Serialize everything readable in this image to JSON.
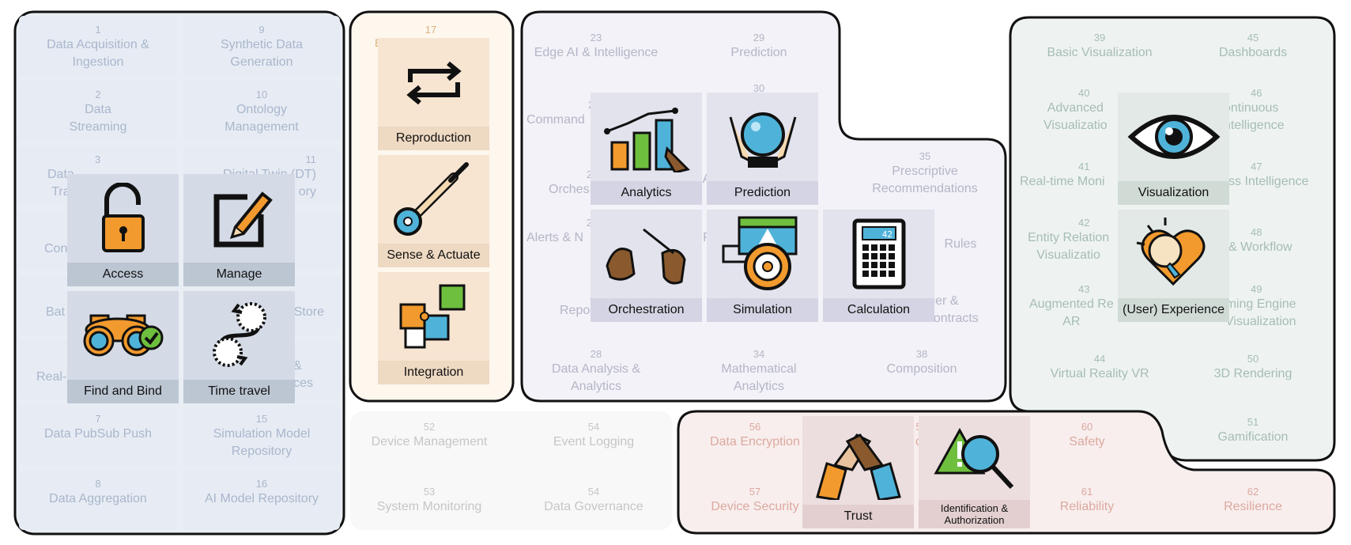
{
  "regions": {
    "data": {
      "cells": [
        {
          "num": "1",
          "label": "Data Acquisition &\nIngestion"
        },
        {
          "num": "9",
          "label": "Synthetic Data\nGeneration"
        },
        {
          "num": "2",
          "label": "Data\nStreaming"
        },
        {
          "num": "10",
          "label": "Ontology\nManagement"
        },
        {
          "num": "3",
          "label": "Data\nTra"
        },
        {
          "num": "11",
          "label": "Digital Twin (DT)\nory"
        },
        {
          "num": "",
          "label": "Con"
        },
        {
          "num": "",
          "label": "e"
        },
        {
          "num": "",
          "label": "Bat"
        },
        {
          "num": "",
          "label": "Store"
        },
        {
          "num": "",
          "label": "Real-"
        },
        {
          "num": "",
          "label": "&\nces"
        },
        {
          "num": "7",
          "label": "Data PubSub Push"
        },
        {
          "num": "15",
          "label": "Simulation Model\nRepository"
        },
        {
          "num": "8",
          "label": "Data Aggregation"
        },
        {
          "num": "16",
          "label": "AI Model Repository"
        }
      ],
      "tiles": [
        {
          "label": "Access",
          "icon": "open-padlock-icon"
        },
        {
          "label": "Manage",
          "icon": "pencil-edit-icon"
        },
        {
          "label": "Find and Bind",
          "icon": "binoculars-check-icon"
        },
        {
          "label": "Time travel",
          "icon": "time-loop-icon"
        }
      ]
    },
    "integration": {
      "cells": [
        {
          "num": "17",
          "label": "E"
        }
      ],
      "tiles": [
        {
          "label": "Reproduction",
          "icon": "repeat-arrows-icon"
        },
        {
          "label": "Sense & Actuate",
          "icon": "pointing-hand-sensor-icon"
        },
        {
          "label": "Integration",
          "icon": "puzzle-icon"
        }
      ]
    },
    "intelligence": {
      "cells": [
        {
          "num": "23",
          "label": "Edge AI & Intelligence"
        },
        {
          "num": "29",
          "label": "Prediction"
        },
        {
          "num": "2",
          "label": "Command"
        },
        {
          "num": "30",
          "label": ""
        },
        {
          "num": "2",
          "label": "Orches"
        },
        {
          "num": "",
          "label": "A"
        },
        {
          "num": "35",
          "label": "Prescriptive\nRecommendations"
        },
        {
          "num": "2",
          "label": "Alerts & N"
        },
        {
          "num": "",
          "label": "F"
        },
        {
          "num": "",
          "label": "Rules"
        },
        {
          "num": "2",
          "label": "Repo"
        },
        {
          "num": "",
          "label": "Ledger &\nSmart Contracts"
        },
        {
          "num": "28",
          "label": "Data Analysis &\nAnalytics"
        },
        {
          "num": "34",
          "label": "Mathematical\nAnalytics"
        },
        {
          "num": "38",
          "label": "Composition"
        }
      ],
      "tiles": [
        {
          "label": "Analytics",
          "icon": "bar-chart-icon"
        },
        {
          "label": "Prediction",
          "icon": "crystal-ball-icon"
        },
        {
          "label": "Orchestration",
          "icon": "conductor-hands-icon"
        },
        {
          "label": "Simulation",
          "icon": "steering-wheel-icon"
        },
        {
          "label": "Calculation",
          "icon": "calculator-icon"
        }
      ],
      "calc_display": "42"
    },
    "ux": {
      "cells": [
        {
          "num": "39",
          "label": "Basic Visualization"
        },
        {
          "num": "45",
          "label": "Dashboards"
        },
        {
          "num": "40",
          "label": "Advanced\nVisualizatio"
        },
        {
          "num": "46",
          "label": "ontinuous\nntelligence"
        },
        {
          "num": "41",
          "label": "Real-time Moni"
        },
        {
          "num": "47",
          "label": "ss Intelligence"
        },
        {
          "num": "42",
          "label": "Entity Relation\nVisualizatio"
        },
        {
          "num": "48",
          "label": "& Workflow"
        },
        {
          "num": "43",
          "label": "Augmented Re\nAR"
        },
        {
          "num": "49",
          "label": "ming Engine\nVisualization"
        },
        {
          "num": "44",
          "label": "Virtual Reality VR"
        },
        {
          "num": "50",
          "label": "3D Rendering"
        },
        {
          "num": "51",
          "label": "Gamification"
        }
      ],
      "tiles": [
        {
          "label": "Visualization",
          "icon": "eye-icon"
        },
        {
          "label": "(User) Experience",
          "icon": "lightbulb-heart-icon"
        }
      ]
    },
    "management": {
      "cells": [
        {
          "num": "52",
          "label": "Device Management"
        },
        {
          "num": "54",
          "label": "Event Logging"
        },
        {
          "num": "53",
          "label": "System Monitoring"
        },
        {
          "num": "54",
          "label": "Data Governance"
        }
      ]
    },
    "trust": {
      "cells": [
        {
          "num": "56",
          "label": "Data Encryption"
        },
        {
          "num": "5",
          "label": "c"
        },
        {
          "num": "60",
          "label": "Safety"
        },
        {
          "num": "57",
          "label": "Device Security"
        },
        {
          "num": "61",
          "label": "Reliability"
        },
        {
          "num": "62",
          "label": "Resilience"
        }
      ],
      "tiles": [
        {
          "label": "Trust",
          "icon": "handshake-icon"
        },
        {
          "label": "Identification &\nAuthorization",
          "icon": "warning-magnifier-icon"
        }
      ]
    }
  },
  "colors": {
    "data_bg": "#e9eef5",
    "integration_bg": "#fdf7ee",
    "intelligence_bg": "#f2f2f8",
    "ux_bg": "#eef3f1",
    "management_bg": "#f8f8f8",
    "trust_bg": "#f8eeee",
    "outline": "#111111"
  }
}
